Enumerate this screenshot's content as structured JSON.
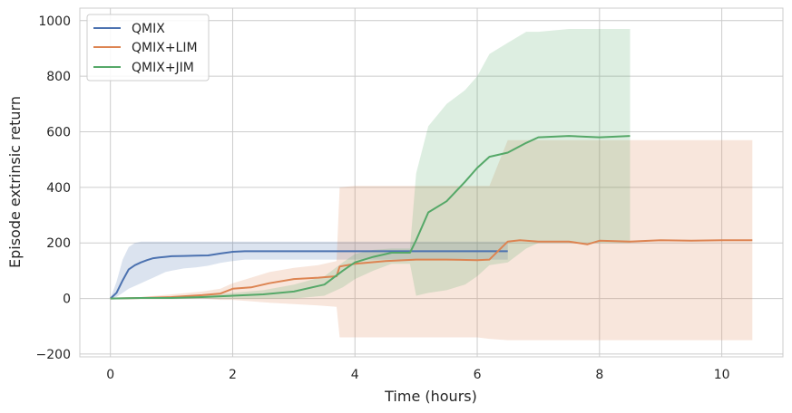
{
  "chart_data": {
    "type": "line",
    "xlabel": "Time (hours)",
    "ylabel": "Episode extrinsic return",
    "xlim": [
      -0.5,
      11.0
    ],
    "ylim": [
      -210,
      1045
    ],
    "xticks": [
      0,
      2,
      4,
      6,
      8,
      10
    ],
    "yticks": [
      -200,
      0,
      200,
      400,
      600,
      800,
      1000
    ],
    "xtick_labels": [
      "0",
      "2",
      "4",
      "6",
      "8",
      "10"
    ],
    "ytick_labels": [
      "−200",
      "0",
      "200",
      "400",
      "600",
      "800",
      "1000"
    ],
    "grid": true,
    "legend_position": "top-left",
    "series": [
      {
        "name": "QMIX",
        "color": "#4c72b0",
        "x": [
          0.0,
          0.1,
          0.2,
          0.3,
          0.4,
          0.5,
          0.6,
          0.7,
          0.8,
          0.9,
          1.0,
          1.2,
          1.4,
          1.6,
          1.8,
          2.0,
          2.2,
          2.5,
          3.0,
          3.5,
          4.0,
          4.5,
          5.0,
          5.5,
          6.0,
          6.5
        ],
        "y": [
          0,
          20,
          65,
          105,
          120,
          130,
          138,
          145,
          148,
          150,
          152,
          153,
          154,
          155,
          162,
          168,
          170,
          170,
          170,
          170,
          170,
          170,
          170,
          170,
          170,
          170
        ],
        "lower": [
          0,
          5,
          20,
          35,
          45,
          55,
          65,
          75,
          85,
          95,
          100,
          108,
          112,
          118,
          128,
          135,
          140,
          140,
          140,
          140,
          140,
          140,
          140,
          140,
          140,
          140
        ],
        "upper": [
          0,
          60,
          140,
          185,
          200,
          205,
          205,
          205,
          205,
          205,
          205,
          205,
          205,
          205,
          205,
          205,
          205,
          205,
          205,
          205,
          205,
          205,
          205,
          205,
          205,
          205
        ]
      },
      {
        "name": "QMIX+LIM",
        "color": "#dd8452",
        "x": [
          0.0,
          0.5,
          1.0,
          1.5,
          1.8,
          2.0,
          2.3,
          2.6,
          3.0,
          3.4,
          3.7,
          3.75,
          4.0,
          4.5,
          5.0,
          5.5,
          6.0,
          6.2,
          6.5,
          6.7,
          7.0,
          7.5,
          7.8,
          8.0,
          8.5,
          9.0,
          9.5,
          10.0,
          10.5
        ],
        "y": [
          0,
          2,
          5,
          12,
          18,
          35,
          40,
          55,
          70,
          75,
          80,
          115,
          125,
          135,
          140,
          140,
          138,
          140,
          205,
          210,
          205,
          205,
          195,
          208,
          205,
          210,
          208,
          210,
          210
        ],
        "lower": [
          0,
          -2,
          -2,
          0,
          -5,
          -5,
          -10,
          -15,
          -20,
          -25,
          -30,
          -140,
          -140,
          -140,
          -140,
          -140,
          -140,
          -145,
          -150,
          -150,
          -150,
          -150,
          -150,
          -150,
          -150,
          -150,
          -150,
          -150,
          -150
        ],
        "upper": [
          0,
          5,
          15,
          25,
          35,
          55,
          75,
          95,
          110,
          120,
          135,
          400,
          405,
          405,
          405,
          405,
          405,
          405,
          570,
          570,
          570,
          570,
          570,
          570,
          570,
          570,
          570,
          570,
          570
        ]
      },
      {
        "name": "QMIX+JIM",
        "color": "#55a868",
        "x": [
          0.0,
          0.5,
          1.0,
          1.5,
          2.0,
          2.5,
          3.0,
          3.5,
          3.8,
          4.0,
          4.3,
          4.6,
          4.9,
          5.0,
          5.2,
          5.5,
          5.8,
          6.0,
          6.2,
          6.5,
          6.8,
          7.0,
          7.5,
          8.0,
          8.5
        ],
        "y": [
          0,
          2,
          2,
          5,
          10,
          15,
          25,
          50,
          100,
          130,
          150,
          165,
          165,
          210,
          310,
          350,
          420,
          470,
          510,
          525,
          560,
          580,
          585,
          580,
          585
        ],
        "lower": [
          0,
          0,
          0,
          0,
          0,
          0,
          0,
          10,
          40,
          70,
          100,
          125,
          125,
          10,
          20,
          30,
          50,
          80,
          120,
          130,
          180,
          200,
          200,
          200,
          200
        ],
        "upper": [
          0,
          4,
          5,
          10,
          20,
          30,
          50,
          80,
          130,
          160,
          175,
          180,
          180,
          450,
          620,
          700,
          750,
          800,
          880,
          920,
          960,
          960,
          970,
          970,
          970
        ]
      }
    ]
  }
}
